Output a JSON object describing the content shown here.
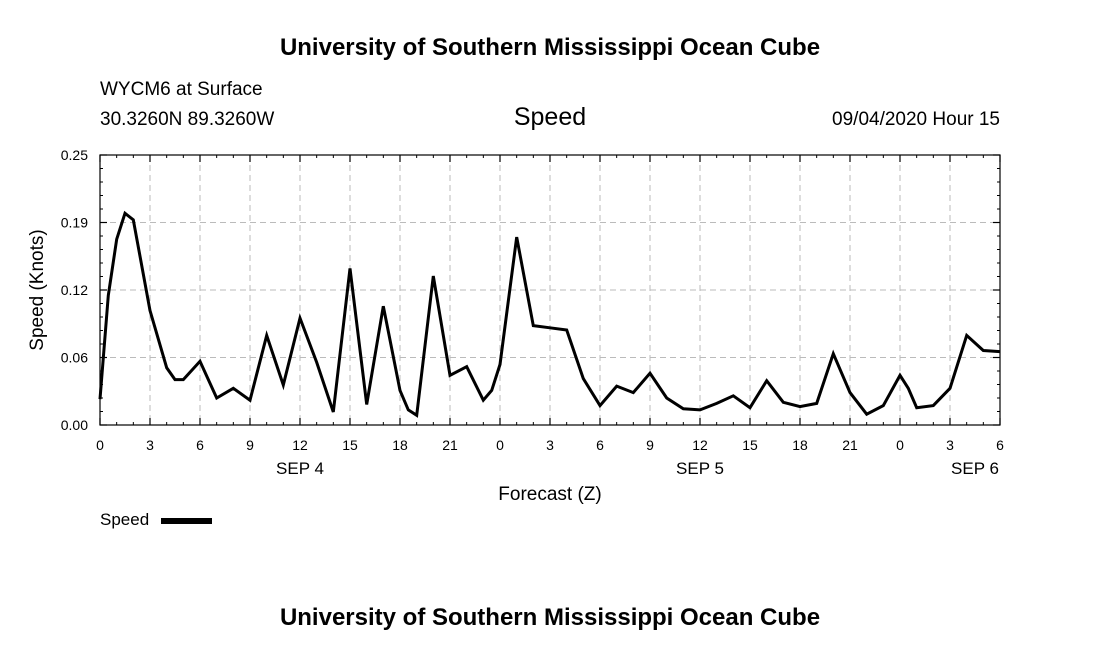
{
  "header": {
    "title": "University of Southern Mississippi Ocean Cube",
    "station": "WYCM6 at Surface",
    "coords": "30.3260N 89.3260W",
    "variable": "Speed",
    "datetime": "09/04/2020 Hour 15"
  },
  "footer": {
    "title": "University of Southern Mississippi Ocean Cube"
  },
  "colors": {
    "line": "#000000",
    "grid": "#bbbbbb",
    "background": "#ffffff"
  },
  "chart_data": {
    "type": "line",
    "xlabel": "Forecast (Z)",
    "ylabel": "Speed (Knots)",
    "ylim": [
      0,
      0.25
    ],
    "y_ticks": [
      "0.00",
      "0.06",
      "0.12",
      "0.19",
      "0.25"
    ],
    "y_tick_values": [
      0,
      0.0625,
      0.125,
      0.1875,
      0.25
    ],
    "xlim": [
      0,
      54
    ],
    "x_tick_values": [
      0,
      3,
      6,
      9,
      12,
      15,
      18,
      21,
      24,
      27,
      30,
      33,
      36,
      39,
      42,
      45,
      48,
      51,
      54
    ],
    "x_tick_labels": [
      "0",
      "3",
      "6",
      "9",
      "12",
      "15",
      "18",
      "21",
      "0",
      "3",
      "6",
      "9",
      "12",
      "15",
      "18",
      "21",
      "0",
      "3",
      "6"
    ],
    "date_labels": [
      {
        "label": "SEP 4",
        "x": 12
      },
      {
        "label": "SEP 5",
        "x": 36
      },
      {
        "label": "SEP 6",
        "x": 52.5
      }
    ],
    "grid": true,
    "legend": {
      "position": "bottom-left",
      "label": "Speed"
    },
    "series": [
      {
        "name": "Speed",
        "x": [
          0,
          0.5,
          1,
          1.5,
          2,
          3,
          4,
          4.5,
          5,
          6,
          7,
          8,
          9,
          10,
          11,
          12,
          13,
          14,
          15,
          16,
          17,
          18,
          18.5,
          19,
          20,
          21,
          22,
          23,
          23.5,
          24,
          25,
          26,
          27,
          28,
          29,
          30,
          31,
          32,
          33,
          34,
          35,
          36,
          37,
          38,
          39,
          40,
          41,
          42,
          43,
          44,
          45,
          46,
          47,
          48,
          48.5,
          49,
          50,
          51,
          52,
          53,
          54
        ],
        "y": [
          0.024,
          0.12,
          0.172,
          0.196,
          0.19,
          0.106,
          0.053,
          0.042,
          0.042,
          0.059,
          0.025,
          0.034,
          0.023,
          0.083,
          0.037,
          0.099,
          0.058,
          0.012,
          0.145,
          0.019,
          0.11,
          0.032,
          0.014,
          0.009,
          0.138,
          0.046,
          0.054,
          0.023,
          0.032,
          0.056,
          0.174,
          0.092,
          0.09,
          0.088,
          0.043,
          0.018,
          0.036,
          0.03,
          0.048,
          0.025,
          0.015,
          0.014,
          0.02,
          0.027,
          0.016,
          0.041,
          0.021,
          0.017,
          0.02,
          0.066,
          0.03,
          0.01,
          0.018,
          0.046,
          0.034,
          0.016,
          0.018,
          0.034,
          0.083,
          0.069,
          0.068
        ]
      }
    ]
  }
}
